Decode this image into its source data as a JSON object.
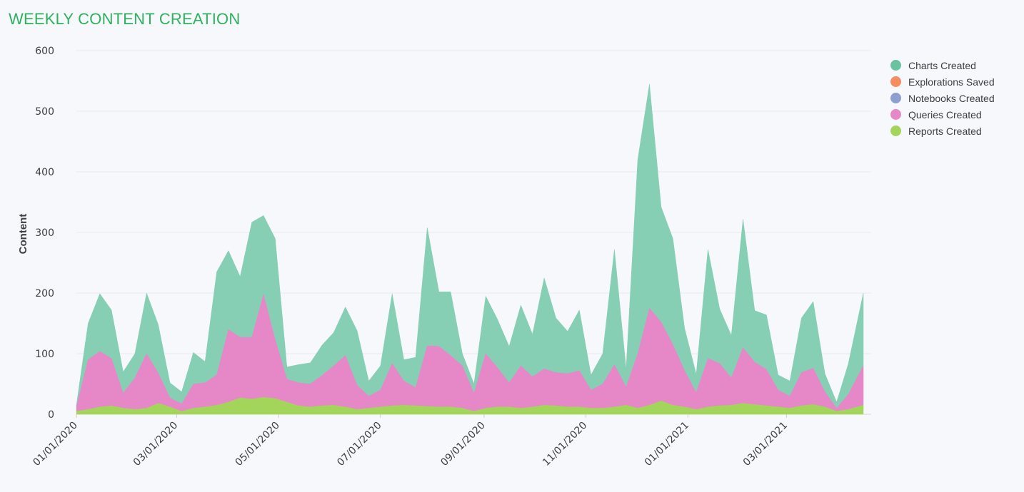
{
  "title": "WEEKLY CONTENT CREATION",
  "chart_data": {
    "type": "area",
    "stacked": true,
    "title": "WEEKLY CONTENT CREATION",
    "xlabel": "",
    "ylabel": "Content",
    "ylim": [
      0,
      600
    ],
    "yticks": [
      "0",
      "100",
      "200",
      "300",
      "400",
      "500",
      "600"
    ],
    "xticks": [
      "01/01/2020",
      "03/01/2020",
      "05/01/2020",
      "07/01/2020",
      "09/01/2020",
      "11/01/2020",
      "01/01/2021",
      "03/01/2021"
    ],
    "grid": true,
    "legend_position": "top-right",
    "x_start": "2020-01-01",
    "x_end": "2021-04-16",
    "series": [
      {
        "name": "Reports Created",
        "color": "#a3d55b",
        "points": [
          [
            "2020-01-01",
            5
          ],
          [
            "2020-01-08",
            8
          ],
          [
            "2020-01-15",
            12
          ],
          [
            "2020-01-22",
            14
          ],
          [
            "2020-01-29",
            10
          ],
          [
            "2020-02-05",
            8
          ],
          [
            "2020-02-12",
            10
          ],
          [
            "2020-02-19",
            18
          ],
          [
            "2020-02-26",
            12
          ],
          [
            "2020-03-04",
            5
          ],
          [
            "2020-03-11",
            10
          ],
          [
            "2020-03-18",
            12
          ],
          [
            "2020-03-25",
            15
          ],
          [
            "2020-04-01",
            20
          ],
          [
            "2020-04-08",
            27
          ],
          [
            "2020-04-15",
            25
          ],
          [
            "2020-04-22",
            28
          ],
          [
            "2020-04-29",
            26
          ],
          [
            "2020-05-06",
            20
          ],
          [
            "2020-05-13",
            14
          ],
          [
            "2020-05-20",
            12
          ],
          [
            "2020-05-27",
            14
          ],
          [
            "2020-06-03",
            15
          ],
          [
            "2020-06-10",
            12
          ],
          [
            "2020-06-17",
            8
          ],
          [
            "2020-06-24",
            10
          ],
          [
            "2020-07-01",
            12
          ],
          [
            "2020-07-08",
            14
          ],
          [
            "2020-07-15",
            15
          ],
          [
            "2020-07-22",
            14
          ],
          [
            "2020-07-29",
            13
          ],
          [
            "2020-08-05",
            12
          ],
          [
            "2020-08-12",
            12
          ],
          [
            "2020-08-19",
            10
          ],
          [
            "2020-08-26",
            5
          ],
          [
            "2020-09-02",
            10
          ],
          [
            "2020-09-09",
            12
          ],
          [
            "2020-09-16",
            12
          ],
          [
            "2020-09-23",
            10
          ],
          [
            "2020-09-30",
            12
          ],
          [
            "2020-10-07",
            15
          ],
          [
            "2020-10-14",
            14
          ],
          [
            "2020-10-21",
            12
          ],
          [
            "2020-10-28",
            12
          ],
          [
            "2020-11-04",
            10
          ],
          [
            "2020-11-11",
            10
          ],
          [
            "2020-11-18",
            12
          ],
          [
            "2020-11-25",
            15
          ],
          [
            "2020-12-02",
            10
          ],
          [
            "2020-12-09",
            15
          ],
          [
            "2020-12-16",
            22
          ],
          [
            "2020-12-23",
            15
          ],
          [
            "2020-12-30",
            12
          ],
          [
            "2021-01-06",
            8
          ],
          [
            "2021-01-13",
            12
          ],
          [
            "2021-01-20",
            14
          ],
          [
            "2021-01-27",
            15
          ],
          [
            "2021-02-03",
            18
          ],
          [
            "2021-02-10",
            16
          ],
          [
            "2021-02-17",
            14
          ],
          [
            "2021-02-24",
            12
          ],
          [
            "2021-03-03",
            10
          ],
          [
            "2021-03-10",
            14
          ],
          [
            "2021-03-17",
            16
          ],
          [
            "2021-03-24",
            12
          ],
          [
            "2021-03-31",
            5
          ],
          [
            "2021-04-07",
            8
          ],
          [
            "2021-04-16",
            15
          ]
        ]
      },
      {
        "name": "Queries Created",
        "color": "#e688c7",
        "points": [
          [
            "2020-01-01",
            7
          ],
          [
            "2020-01-08",
            82
          ],
          [
            "2020-01-15",
            92
          ],
          [
            "2020-01-22",
            78
          ],
          [
            "2020-01-29",
            25
          ],
          [
            "2020-02-05",
            52
          ],
          [
            "2020-02-12",
            90
          ],
          [
            "2020-02-19",
            50
          ],
          [
            "2020-02-26",
            15
          ],
          [
            "2020-03-04",
            12
          ],
          [
            "2020-03-11",
            40
          ],
          [
            "2020-03-18",
            40
          ],
          [
            "2020-03-25",
            50
          ],
          [
            "2020-04-01",
            120
          ],
          [
            "2020-04-08",
            100
          ],
          [
            "2020-04-15",
            102
          ],
          [
            "2020-04-22",
            170
          ],
          [
            "2020-04-29",
            97
          ],
          [
            "2020-05-06",
            38
          ],
          [
            "2020-05-13",
            38
          ],
          [
            "2020-05-20",
            38
          ],
          [
            "2020-05-27",
            50
          ],
          [
            "2020-06-03",
            65
          ],
          [
            "2020-06-10",
            85
          ],
          [
            "2020-06-17",
            40
          ],
          [
            "2020-06-24",
            20
          ],
          [
            "2020-07-01",
            28
          ],
          [
            "2020-07-08",
            70
          ],
          [
            "2020-07-15",
            40
          ],
          [
            "2020-07-22",
            30
          ],
          [
            "2020-07-29",
            100
          ],
          [
            "2020-08-05",
            100
          ],
          [
            "2020-08-12",
            85
          ],
          [
            "2020-08-19",
            70
          ],
          [
            "2020-08-26",
            30
          ],
          [
            "2020-09-02",
            90
          ],
          [
            "2020-09-09",
            65
          ],
          [
            "2020-09-16",
            40
          ],
          [
            "2020-09-23",
            70
          ],
          [
            "2020-09-30",
            50
          ],
          [
            "2020-10-07",
            60
          ],
          [
            "2020-10-14",
            55
          ],
          [
            "2020-10-21",
            55
          ],
          [
            "2020-10-28",
            60
          ],
          [
            "2020-11-04",
            30
          ],
          [
            "2020-11-11",
            40
          ],
          [
            "2020-11-18",
            70
          ],
          [
            "2020-11-25",
            30
          ],
          [
            "2020-12-02",
            90
          ],
          [
            "2020-12-09",
            160
          ],
          [
            "2020-12-16",
            130
          ],
          [
            "2020-12-23",
            100
          ],
          [
            "2020-12-30",
            60
          ],
          [
            "2021-01-06",
            28
          ],
          [
            "2021-01-13",
            80
          ],
          [
            "2021-01-20",
            70
          ],
          [
            "2021-01-27",
            45
          ],
          [
            "2021-02-03",
            92
          ],
          [
            "2021-02-10",
            70
          ],
          [
            "2021-02-17",
            60
          ],
          [
            "2021-02-24",
            28
          ],
          [
            "2021-03-03",
            20
          ],
          [
            "2021-03-10",
            55
          ],
          [
            "2021-03-17",
            60
          ],
          [
            "2021-03-24",
            25
          ],
          [
            "2021-03-31",
            5
          ],
          [
            "2021-04-07",
            25
          ],
          [
            "2021-04-16",
            65
          ]
        ]
      },
      {
        "name": "Notebooks Created",
        "color": "#8d9fd0",
        "points": []
      },
      {
        "name": "Explorations Saved",
        "color": "#f48d5f",
        "points": []
      },
      {
        "name": "Charts Created",
        "color": "#86cfb4",
        "points": [
          [
            "2020-01-01",
            3
          ],
          [
            "2020-01-08",
            60
          ],
          [
            "2020-01-15",
            95
          ],
          [
            "2020-01-22",
            80
          ],
          [
            "2020-01-29",
            35
          ],
          [
            "2020-02-05",
            40
          ],
          [
            "2020-02-12",
            100
          ],
          [
            "2020-02-19",
            80
          ],
          [
            "2020-02-26",
            25
          ],
          [
            "2020-03-04",
            20
          ],
          [
            "2020-03-11",
            52
          ],
          [
            "2020-03-18",
            35
          ],
          [
            "2020-03-25",
            170
          ],
          [
            "2020-04-01",
            130
          ],
          [
            "2020-04-08",
            100
          ],
          [
            "2020-04-15",
            190
          ],
          [
            "2020-04-22",
            130
          ],
          [
            "2020-04-29",
            167
          ],
          [
            "2020-05-06",
            20
          ],
          [
            "2020-05-13",
            30
          ],
          [
            "2020-05-20",
            35
          ],
          [
            "2020-05-27",
            50
          ],
          [
            "2020-06-03",
            55
          ],
          [
            "2020-06-10",
            80
          ],
          [
            "2020-06-17",
            90
          ],
          [
            "2020-06-24",
            25
          ],
          [
            "2020-07-01",
            40
          ],
          [
            "2020-07-08",
            115
          ],
          [
            "2020-07-15",
            35
          ],
          [
            "2020-07-22",
            50
          ],
          [
            "2020-07-29",
            195
          ],
          [
            "2020-08-05",
            90
          ],
          [
            "2020-08-12",
            105
          ],
          [
            "2020-08-19",
            20
          ],
          [
            "2020-08-26",
            15
          ],
          [
            "2020-09-02",
            95
          ],
          [
            "2020-09-09",
            80
          ],
          [
            "2020-09-16",
            60
          ],
          [
            "2020-09-23",
            100
          ],
          [
            "2020-09-30",
            70
          ],
          [
            "2020-10-07",
            150
          ],
          [
            "2020-10-14",
            90
          ],
          [
            "2020-10-21",
            70
          ],
          [
            "2020-10-28",
            100
          ],
          [
            "2020-11-04",
            25
          ],
          [
            "2020-11-11",
            50
          ],
          [
            "2020-11-18",
            190
          ],
          [
            "2020-11-25",
            30
          ],
          [
            "2020-12-02",
            320
          ],
          [
            "2020-12-09",
            370
          ],
          [
            "2020-12-16",
            190
          ],
          [
            "2020-12-23",
            175
          ],
          [
            "2020-12-30",
            70
          ],
          [
            "2021-01-06",
            30
          ],
          [
            "2021-01-13",
            180
          ],
          [
            "2021-01-20",
            90
          ],
          [
            "2021-01-27",
            70
          ],
          [
            "2021-02-03",
            212
          ],
          [
            "2021-02-10",
            85
          ],
          [
            "2021-02-17",
            90
          ],
          [
            "2021-02-24",
            25
          ],
          [
            "2021-03-03",
            25
          ],
          [
            "2021-03-10",
            90
          ],
          [
            "2021-03-17",
            110
          ],
          [
            "2021-03-24",
            30
          ],
          [
            "2021-03-31",
            10
          ],
          [
            "2021-04-07",
            50
          ],
          [
            "2021-04-16",
            120
          ]
        ]
      }
    ]
  },
  "legend": [
    {
      "label": "Charts Created",
      "color": "#6ac3a0"
    },
    {
      "label": "Explorations Saved",
      "color": "#f48d5f"
    },
    {
      "label": "Notebooks Created",
      "color": "#8d9fd0"
    },
    {
      "label": "Queries Created",
      "color": "#e688c7"
    },
    {
      "label": "Reports Created",
      "color": "#a3d55b"
    }
  ]
}
